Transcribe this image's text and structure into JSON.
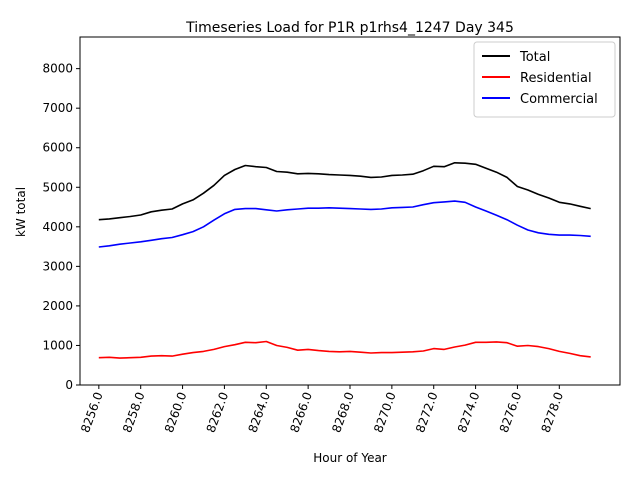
{
  "chart_data": {
    "type": "line",
    "title": "Timeseries Load for P1R p1rhs4_1247  Day 345",
    "xlabel": "Hour of Year",
    "ylabel": "kW total",
    "xlim": [
      8255.1,
      8280.9
    ],
    "ylim": [
      0,
      8800
    ],
    "x_ticks": [
      8256,
      8258,
      8260,
      8262,
      8264,
      8266,
      8268,
      8270,
      8272,
      8274,
      8276,
      8278
    ],
    "x_tick_labels": [
      "8256.0",
      "8258.0",
      "8260.0",
      "8262.0",
      "8264.0",
      "8266.0",
      "8268.0",
      "8270.0",
      "8272.0",
      "8274.0",
      "8276.0",
      "8278.0"
    ],
    "y_ticks": [
      0,
      1000,
      2000,
      3000,
      4000,
      5000,
      6000,
      7000,
      8000
    ],
    "y_tick_labels": [
      "0",
      "1000",
      "2000",
      "3000",
      "4000",
      "5000",
      "6000",
      "7000",
      "8000"
    ],
    "legend_position": "top-right",
    "x": [
      8256,
      8256.5,
      8257,
      8257.5,
      8258,
      8258.5,
      8259,
      8259.5,
      8260,
      8260.5,
      8261,
      8261.5,
      8262,
      8262.5,
      8263,
      8263.5,
      8264,
      8264.5,
      8265,
      8265.5,
      8266,
      8266.5,
      8267,
      8267.5,
      8268,
      8268.5,
      8269,
      8269.5,
      8270,
      8270.5,
      8271,
      8271.5,
      8272,
      8272.5,
      8273,
      8273.5,
      8274,
      8274.5,
      8275,
      8275.5,
      8276,
      8276.5,
      8277,
      8277.5,
      8278,
      8278.5,
      8279,
      8279.5
    ],
    "series": [
      {
        "name": "Total",
        "color": "#000000",
        "values": [
          4180,
          4200,
          4230,
          4260,
          4300,
          4380,
          4420,
          4450,
          4580,
          4680,
          4850,
          5050,
          5300,
          5450,
          5550,
          5520,
          5500,
          5400,
          5380,
          5340,
          5350,
          5340,
          5320,
          5310,
          5300,
          5280,
          5250,
          5260,
          5300,
          5310,
          5330,
          5420,
          5530,
          5520,
          5620,
          5610,
          5580,
          5480,
          5380,
          5250,
          5020,
          4930,
          4820,
          4730,
          4620,
          4580,
          4520,
          4460
        ]
      },
      {
        "name": "Residential",
        "color": "#ff0000",
        "values": [
          690,
          700,
          680,
          690,
          700,
          730,
          740,
          730,
          780,
          820,
          850,
          900,
          970,
          1020,
          1080,
          1070,
          1100,
          1000,
          950,
          880,
          900,
          870,
          850,
          840,
          850,
          830,
          810,
          820,
          820,
          830,
          840,
          860,
          920,
          900,
          960,
          1010,
          1080,
          1080,
          1090,
          1070,
          980,
          1000,
          970,
          920,
          850,
          800,
          740,
          710
        ]
      },
      {
        "name": "Commercial",
        "color": "#0000ff",
        "values": [
          3490,
          3520,
          3560,
          3590,
          3620,
          3660,
          3700,
          3730,
          3800,
          3880,
          4000,
          4170,
          4330,
          4440,
          4460,
          4460,
          4430,
          4400,
          4430,
          4450,
          4470,
          4470,
          4480,
          4470,
          4460,
          4450,
          4440,
          4450,
          4480,
          4490,
          4500,
          4560,
          4610,
          4630,
          4650,
          4620,
          4500,
          4400,
          4290,
          4180,
          4040,
          3920,
          3850,
          3810,
          3790,
          3790,
          3780,
          3760
        ]
      }
    ]
  }
}
